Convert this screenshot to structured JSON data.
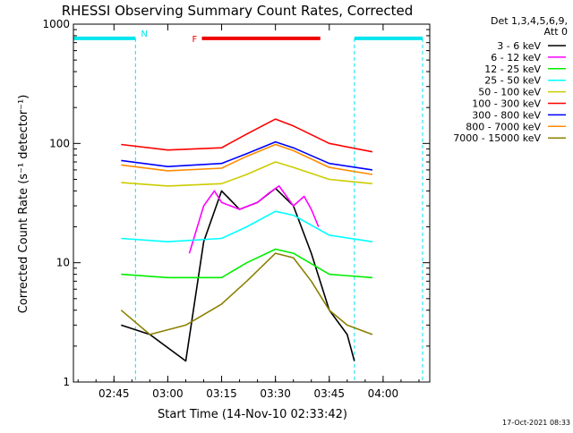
{
  "timestamp": "17-Oct-2021 08:33",
  "chart_data": {
    "type": "line",
    "title": "RHESSI Observing Summary Count Rates, Corrected",
    "xlabel": "Start Time (14-Nov-10 02:33:42)",
    "ylabel": "Corrected Count Rate (s⁻¹ detector⁻¹)",
    "yscale": "log",
    "ylim": [
      1,
      1000
    ],
    "xlim": [
      "02:33:42",
      "04:13:00"
    ],
    "x_ticks": [
      "02:45",
      "03:00",
      "03:15",
      "03:30",
      "03:45",
      "04:00"
    ],
    "y_ticks": [
      "1",
      "10",
      "100",
      "1000"
    ],
    "grid": false,
    "legend_placement": "right",
    "legend_header": [
      "Det 1,3,4,5,6,9,",
      "Att 0"
    ],
    "markers": [
      {
        "label": "N",
        "color": "#00e5ee",
        "level": 760,
        "segments": [
          [
            "02:33:42",
            "02:51:00"
          ],
          [
            "03:52:00",
            "04:11:00"
          ]
        ]
      },
      {
        "label": "F",
        "color": "#ee0000",
        "level": 760,
        "segments": [
          [
            "03:09:30",
            "03:42:30"
          ]
        ]
      }
    ],
    "series": [
      {
        "name": "3 - 6 keV",
        "color": "#000000",
        "x": [
          "02:47",
          "02:55",
          "03:05",
          "03:10",
          "03:15",
          "03:20",
          "03:25",
          "03:30",
          "03:35",
          "03:40",
          "03:45",
          "03:50",
          "03:52"
        ],
        "values": [
          3,
          2.5,
          1.5,
          15,
          40,
          28,
          32,
          42,
          30,
          12,
          4,
          2.5,
          1.5
        ]
      },
      {
        "name": "6 - 12 keV",
        "color": "#ff00ff",
        "x": [
          "03:06",
          "03:10",
          "03:13",
          "03:15",
          "03:20",
          "03:25",
          "03:28",
          "03:31",
          "03:35",
          "03:38",
          "03:40",
          "03:42"
        ],
        "values": [
          12,
          30,
          40,
          32,
          28,
          32,
          38,
          44,
          30,
          36,
          28,
          20
        ]
      },
      {
        "name": "12 - 25 keV",
        "color": "#00ee00",
        "x": [
          "02:47",
          "03:00",
          "03:15",
          "03:22",
          "03:30",
          "03:35",
          "03:45",
          "03:57"
        ],
        "values": [
          8,
          7.5,
          7.5,
          10,
          13,
          12,
          8,
          7.5
        ]
      },
      {
        "name": "25 - 50 keV",
        "color": "#00ffff",
        "x": [
          "02:47",
          "03:00",
          "03:15",
          "03:22",
          "03:30",
          "03:35",
          "03:45",
          "03:57"
        ],
        "values": [
          16,
          15,
          16,
          20,
          27,
          25,
          17,
          15
        ]
      },
      {
        "name": "50 - 100 keV",
        "color": "#cccc00",
        "x": [
          "02:47",
          "03:00",
          "03:15",
          "03:22",
          "03:30",
          "03:35",
          "03:45",
          "03:57"
        ],
        "values": [
          47,
          44,
          46,
          55,
          70,
          63,
          50,
          46
        ]
      },
      {
        "name": "100 - 300 keV",
        "color": "#ff0000",
        "x": [
          "02:47",
          "03:00",
          "03:15",
          "03:22",
          "03:30",
          "03:35",
          "03:45",
          "03:57"
        ],
        "values": [
          98,
          88,
          92,
          120,
          160,
          140,
          100,
          85
        ]
      },
      {
        "name": "300 - 800 keV",
        "color": "#0000ff",
        "x": [
          "02:47",
          "03:00",
          "03:15",
          "03:22",
          "03:30",
          "03:35",
          "03:45",
          "03:57"
        ],
        "values": [
          72,
          64,
          68,
          82,
          103,
          92,
          68,
          60
        ]
      },
      {
        "name": "800 - 7000 keV",
        "color": "#ff8c00",
        "x": [
          "02:47",
          "03:00",
          "03:15",
          "03:22",
          "03:30",
          "03:35",
          "03:45",
          "03:57"
        ],
        "values": [
          66,
          59,
          62,
          78,
          98,
          87,
          63,
          55
        ]
      },
      {
        "name": "7000 - 15000 keV",
        "color": "#8b8000",
        "x": [
          "02:47",
          "02:55",
          "03:05",
          "03:15",
          "03:22",
          "03:30",
          "03:35",
          "03:40",
          "03:45",
          "03:50",
          "03:57"
        ],
        "values": [
          4,
          2.5,
          3,
          4.5,
          7,
          12,
          11,
          7,
          4,
          3,
          2.5
        ]
      }
    ]
  }
}
